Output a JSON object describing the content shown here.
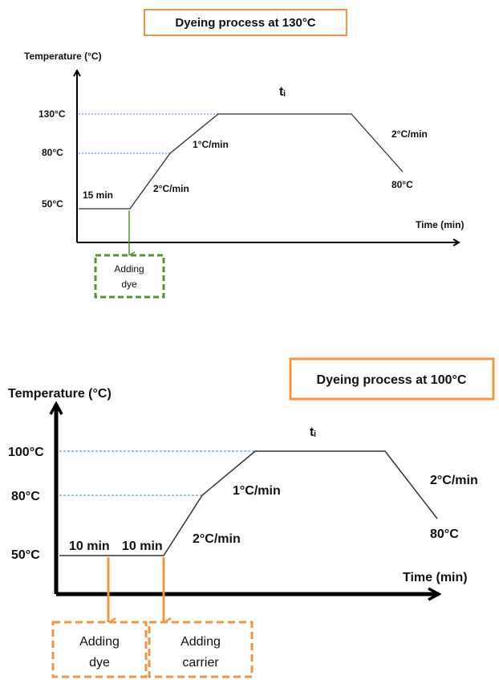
{
  "diagrams": [
    {
      "title": "Dyeing process at 130°C",
      "axis_y_label": "Temperature (°C)",
      "axis_x_label": "Time (min)",
      "temp_labels": [
        "130°C",
        "80°C",
        "50°C"
      ],
      "hold_label": "tᵢ",
      "segment_labels": {
        "initial_hold": "15 min",
        "heat_rate_1": "2°C/min",
        "heat_rate_2": "1°C/min",
        "cool_rate": "2°C/min",
        "end_temp": "80°C"
      },
      "boxes": [
        {
          "line1": "Adding",
          "line2": "dye"
        }
      ],
      "colors": {
        "arrow": "#5a8f3a",
        "box_border": "#5a8f3a",
        "title_border": "#f0944a",
        "guide": "#4a7fcf"
      }
    },
    {
      "title": "Dyeing process at 100°C",
      "axis_y_label": "Temperature (°C)",
      "axis_x_label": "Time (min)",
      "temp_labels": [
        "100°C",
        "80°C",
        "50°C"
      ],
      "hold_label": "tᵢ",
      "segment_labels": {
        "hold_a": "10 min",
        "hold_b": "10 min",
        "heat_rate_1": "2°C/min",
        "heat_rate_2": "1°C/min",
        "cool_rate": "2°C/min",
        "end_temp": "80°C"
      },
      "boxes": [
        {
          "line1": "Adding",
          "line2": "dye"
        },
        {
          "line1": "Adding",
          "line2": "carrier"
        }
      ],
      "colors": {
        "arrow": "#f0944a",
        "box_border": "#f0944a",
        "title_border": "#f0944a",
        "guide": "#4a7fcf"
      }
    }
  ]
}
